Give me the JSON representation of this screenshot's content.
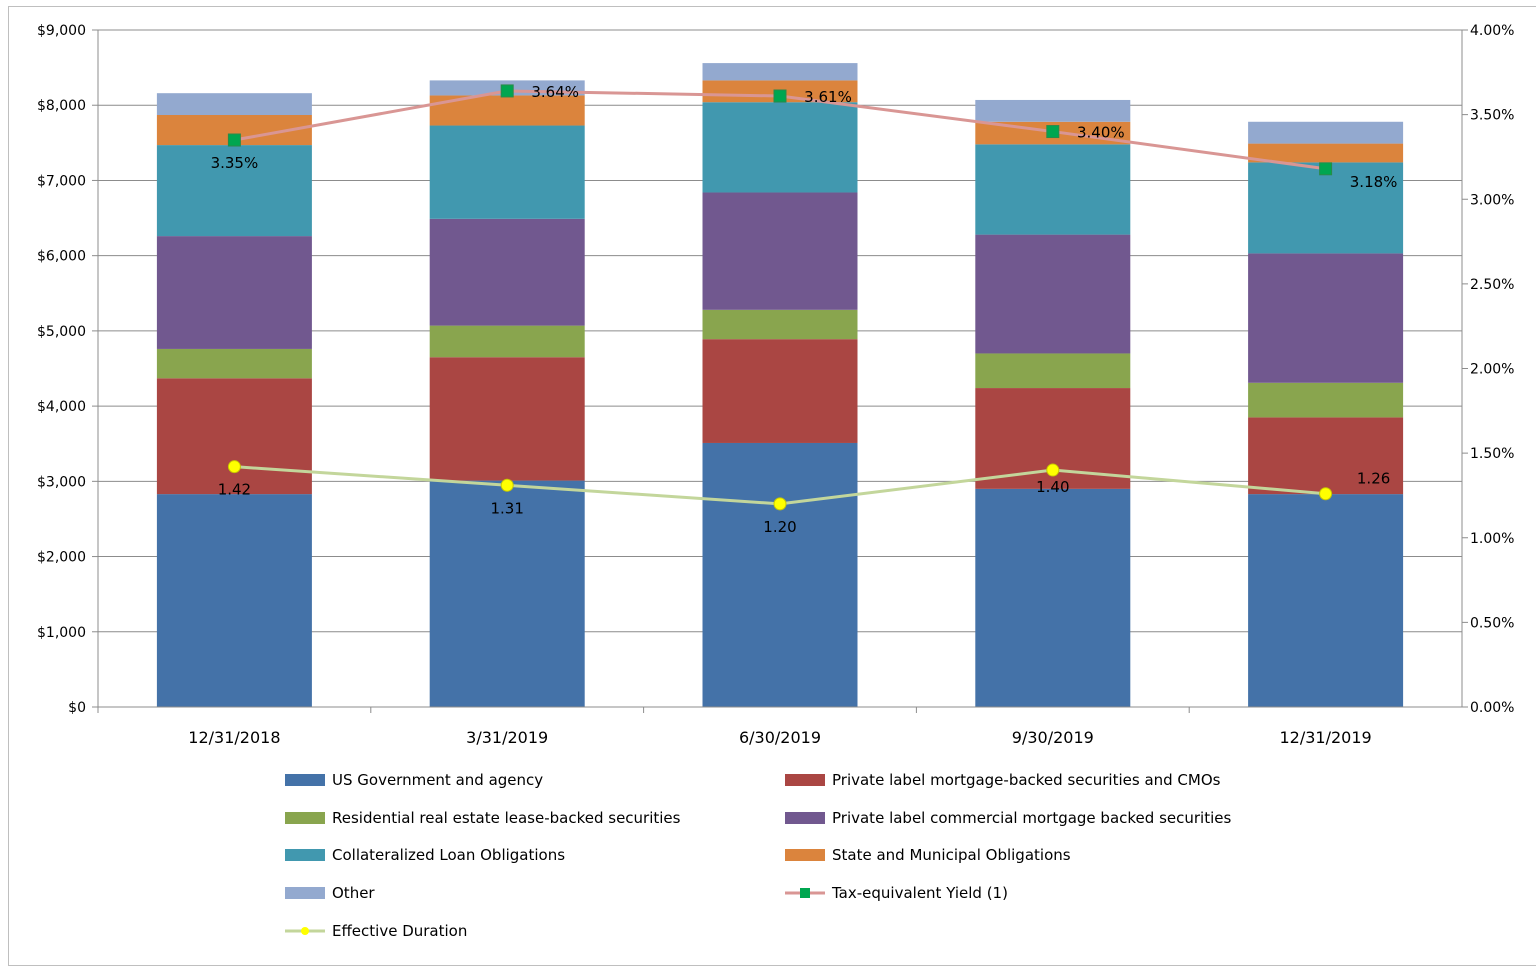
{
  "chart_data": {
    "type": "bar",
    "stacked": true,
    "categories": [
      "12/31/2018",
      "3/31/2019",
      "6/30/2019",
      "9/30/2019",
      "12/31/2019"
    ],
    "ylim": [
      0,
      9000
    ],
    "y2lim": [
      0,
      4.0
    ],
    "yticks": [
      "$0",
      "$1,000",
      "$2,000",
      "$3,000",
      "$4,000",
      "$5,000",
      "$6,000",
      "$7,000",
      "$8,000",
      "$9,000"
    ],
    "y2ticks": [
      "0.00%",
      "0.50%",
      "1.00%",
      "1.50%",
      "2.00%",
      "2.50%",
      "3.00%",
      "3.50%",
      "4.00%"
    ],
    "grid": true,
    "legend_position": "bottom",
    "series": [
      {
        "name": "US Government and agency",
        "color": "#4472a8",
        "values": [
          2830,
          3010,
          3510,
          2900,
          2830
        ]
      },
      {
        "name": "Private label mortgage-backed securities and CMOs",
        "color": "#aa4643",
        "values": [
          1540,
          1640,
          1380,
          1340,
          1020
        ]
      },
      {
        "name": "Residential real estate lease-backed securities",
        "color": "#89a54e",
        "values": [
          390,
          420,
          390,
          460,
          460
        ]
      },
      {
        "name": "Private label commercial mortgage backed securities",
        "color": "#71588f",
        "values": [
          1500,
          1420,
          1560,
          1580,
          1720
        ]
      },
      {
        "name": "Collateralized Loan Obligations",
        "color": "#4198af",
        "values": [
          1210,
          1240,
          1200,
          1200,
          1210
        ]
      },
      {
        "name": "State and Municipal Obligations",
        "color": "#db843d",
        "values": [
          400,
          400,
          290,
          300,
          250
        ]
      },
      {
        "name": "Other",
        "color": "#93a9cf",
        "values": [
          290,
          200,
          230,
          290,
          290
        ]
      }
    ],
    "lines": [
      {
        "name": "Tax-equivalent Yield (1)",
        "axis": "right",
        "color": "#d99694",
        "marker_color": "#00a650",
        "values": [
          3.35,
          3.64,
          3.61,
          3.4,
          3.18
        ],
        "labels": [
          "3.35%",
          "3.64%",
          "3.61%",
          "3.40%",
          "3.18%"
        ]
      },
      {
        "name": "Effective Duration",
        "axis": "right",
        "color": "#c3d69b",
        "marker_color": "#ffff00",
        "values": [
          1.42,
          1.31,
          1.2,
          1.4,
          1.26
        ],
        "labels": [
          "1.42",
          "1.31",
          "1.20",
          "1.40",
          "1.26"
        ]
      }
    ]
  }
}
